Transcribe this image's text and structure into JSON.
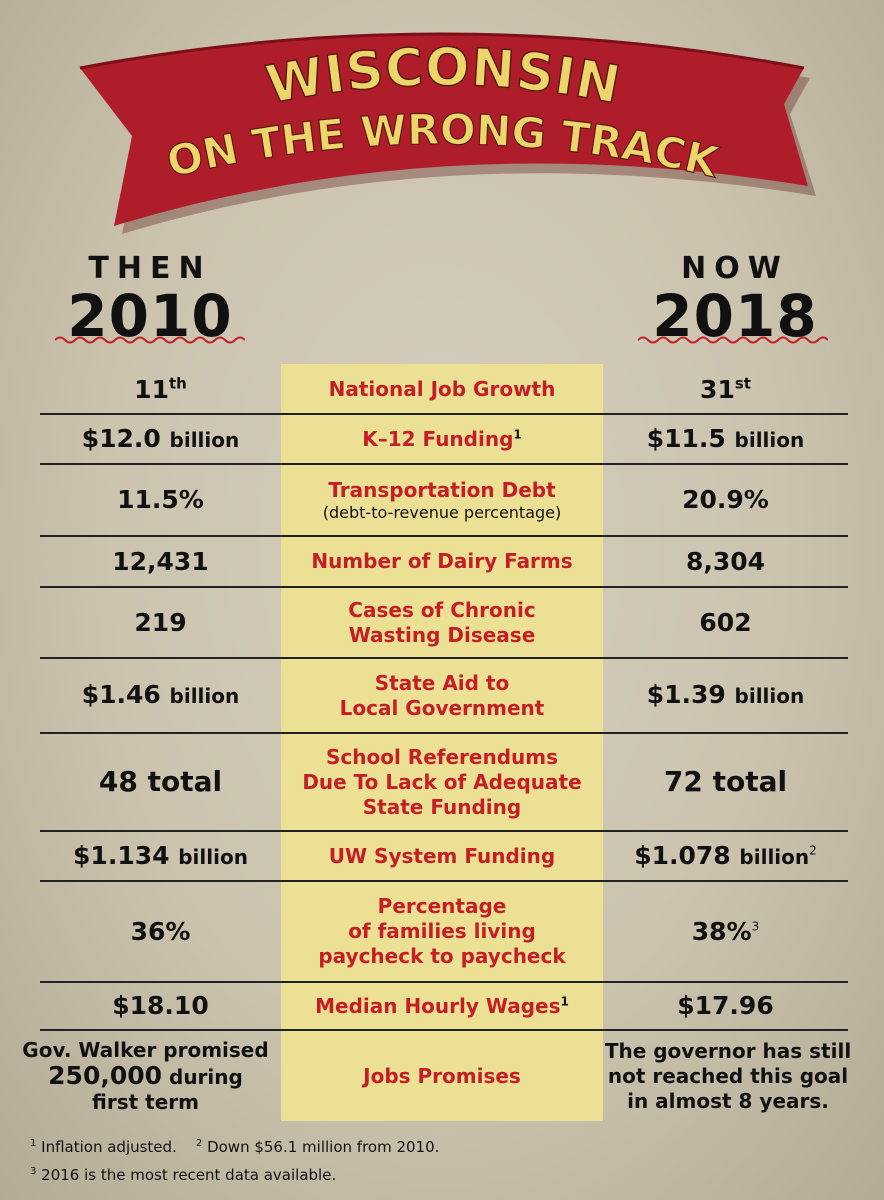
{
  "banner": {
    "line1": "WISCONSIN",
    "line2": "ON THE WRONG TRACK"
  },
  "then": {
    "label": "THEN",
    "year": "2010"
  },
  "now": {
    "label": "NOW",
    "year": "2018"
  },
  "rows": [
    {
      "then": "11",
      "then_sup": "th",
      "label": "National Job Growth",
      "now": "31",
      "now_sup": "st"
    },
    {
      "then": "$12.0",
      "then_unit": "billion",
      "label": "K–12 Funding",
      "label_note": "1",
      "now": "$11.5",
      "now_unit": "billion"
    },
    {
      "then": "11.5%",
      "label": "Transportation Debt",
      "sublabel": "(debt-to-revenue percentage)",
      "now": "20.9%"
    },
    {
      "then": "12,431",
      "label": "Number of Dairy Farms",
      "now": "8,304"
    },
    {
      "then": "219",
      "label_1": "Cases of Chronic",
      "label_2": "Wasting Disease",
      "now": "602"
    },
    {
      "then": "$1.46",
      "then_unit": "billion",
      "label_1": "State Aid to",
      "label_2": "Local Government",
      "now": "$1.39",
      "now_unit": "billion"
    },
    {
      "then": "48 total",
      "label_1": "School Referendums",
      "label_2": "Due To Lack of Adequate",
      "label_3": "State Funding",
      "now": "72 total"
    },
    {
      "then": "$1.134",
      "then_unit": "billion",
      "label": "UW System Funding",
      "now": "$1.078",
      "now_unit": "billion",
      "now_note": "2"
    },
    {
      "then": "36%",
      "label_1": "Percentage",
      "label_2": "of families living",
      "label_3": "paycheck to paycheck",
      "now": "38%",
      "now_note": "3"
    },
    {
      "then": "$18.10",
      "label": "Median Hourly Wages",
      "label_note": "1",
      "now": "$17.96"
    },
    {
      "then_1": "Gov. Walker promised",
      "then_2a": "250,000",
      "then_2b": "during",
      "then_3": "first term",
      "label": "Jobs Promises",
      "now_1": "The governor has still",
      "now_2": "not reached this goal",
      "now_3": "in almost 8 years."
    }
  ],
  "footnotes": {
    "n1": "1",
    "t1": "Inflation adjusted.",
    "n2": "2",
    "t2": "Down $56.1 million from 2010.",
    "n3": "3",
    "t3": "2016 is the most recent data available."
  },
  "colors": {
    "accent_red": "#c41e26",
    "banner_red": "#b01d2a",
    "gold_text": "#ecd56a",
    "panel_yellow": "#ece094",
    "background": "#cfc7b3"
  }
}
